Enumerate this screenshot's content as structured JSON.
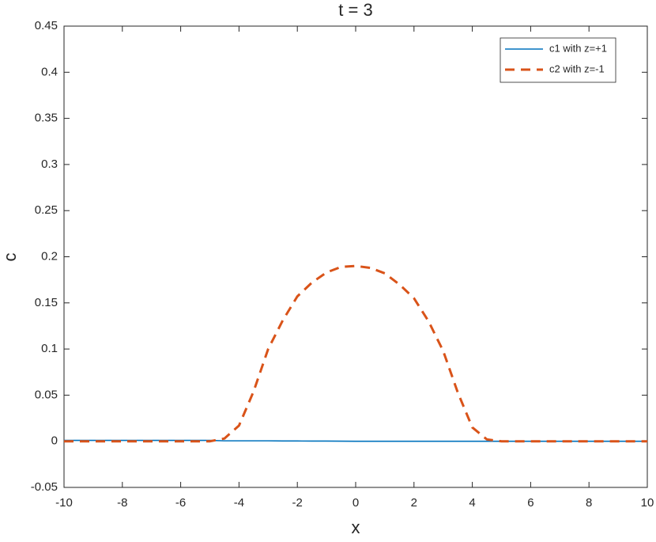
{
  "chart_data": {
    "type": "line",
    "title": "t = 3",
    "x_label": "x",
    "y_label": "c",
    "x": [
      -10,
      -9.5,
      -9,
      -8.5,
      -8,
      -7.5,
      -7,
      -6.5,
      -6,
      -5.5,
      -5,
      -4.5,
      -4,
      -3.5,
      -3,
      -2.5,
      -2,
      -1.5,
      -1,
      -0.5,
      0,
      0.5,
      1,
      1.5,
      2,
      2.5,
      3,
      3.5,
      4,
      4.5,
      5,
      5.5,
      6,
      6.5,
      7,
      7.5,
      8,
      8.5,
      9,
      9.5,
      10
    ],
    "series": [
      {
        "name": "c1 with z=+1",
        "color": "#0072bd",
        "dash": false,
        "values": [
          0.001,
          0.001,
          0.001,
          0.001,
          0.001,
          0.001,
          0.001,
          0.001,
          0.001,
          0.001,
          0.001,
          0.0005,
          0.0005,
          0.0005,
          0.0005,
          0.0003,
          0.0003,
          0.0002,
          0.0002,
          0.0001,
          0,
          0,
          0,
          0,
          0,
          0,
          0,
          0,
          0,
          0,
          0,
          0,
          0,
          0,
          0,
          0,
          0,
          0,
          0,
          0,
          0
        ]
      },
      {
        "name": "c2 with z=-1",
        "color": "#d95319",
        "dash": true,
        "values": [
          0,
          0,
          0,
          0,
          0,
          0,
          0,
          0,
          0,
          0,
          0,
          0.003,
          0.017,
          0.054,
          0.1,
          0.131,
          0.157,
          0.172,
          0.183,
          0.189,
          0.19,
          0.188,
          0.182,
          0.17,
          0.155,
          0.13,
          0.098,
          0.053,
          0.015,
          0.002,
          0,
          0,
          0,
          0,
          0,
          0,
          0,
          0,
          0,
          0,
          0
        ]
      }
    ],
    "xlim": [
      -10,
      10
    ],
    "xticks": [
      -10,
      -8,
      -6,
      -4,
      -2,
      0,
      2,
      4,
      6,
      8,
      10
    ],
    "ylim": [
      -0.05,
      0.45
    ],
    "yticks": [
      -0.05,
      0,
      0.05,
      0.1,
      0.15,
      0.2,
      0.25,
      0.3,
      0.35,
      0.4,
      0.45
    ],
    "grid": false,
    "legend": "top-right"
  }
}
